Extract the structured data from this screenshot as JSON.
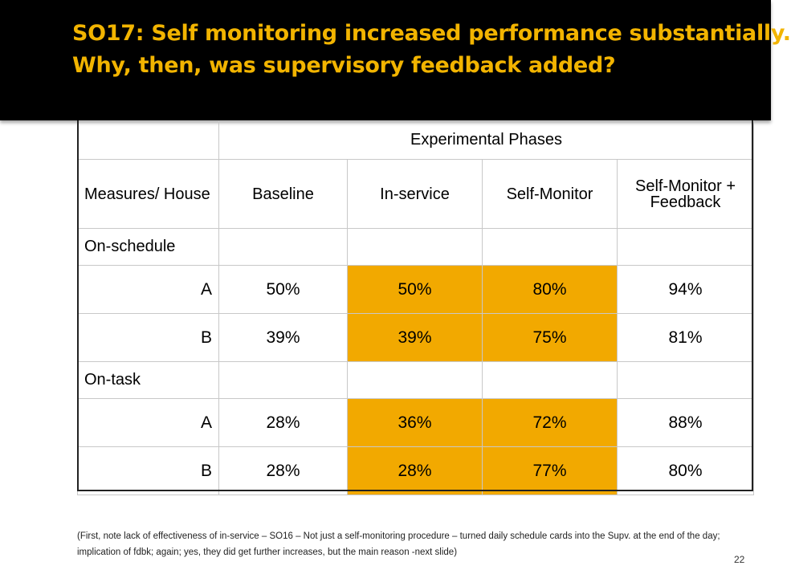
{
  "slide": {
    "title_line1": "SO17: Self monitoring increased performance substantially.",
    "title_line2": "Why, then, was supervisory feedback added?",
    "page_number": "22",
    "footnote": "(First, note lack of effectiveness of in-service – SO16 – Not just a self-monitoring procedure – turned daily schedule cards into the Supv. at the end of the day; implication of fdbk; again; yes, they did get further increases, but the main reason -next slide)"
  },
  "table": {
    "phase_header": "Experimental Phases",
    "columns": [
      "Measures/ House",
      "Baseline",
      "In-service",
      "Self-Monitor",
      "Self-Monitor + Feedback"
    ],
    "sections": [
      {
        "label": "On-schedule",
        "rows": [
          {
            "house": "A",
            "values": [
              "50%",
              "50%",
              "80%",
              "94%"
            ]
          },
          {
            "house": "B",
            "values": [
              "39%",
              "39%",
              "75%",
              "81%"
            ]
          }
        ]
      },
      {
        "label": "On-task",
        "rows": [
          {
            "house": "A",
            "values": [
              "28%",
              "36%",
              "72%",
              "88%"
            ]
          },
          {
            "house": "B",
            "values": [
              "28%",
              "28%",
              "77%",
              "80%"
            ]
          }
        ]
      }
    ],
    "highlight_color": "#f2a900"
  },
  "colors": {
    "title_bar": "#000000",
    "title_text": "#f2b400"
  }
}
